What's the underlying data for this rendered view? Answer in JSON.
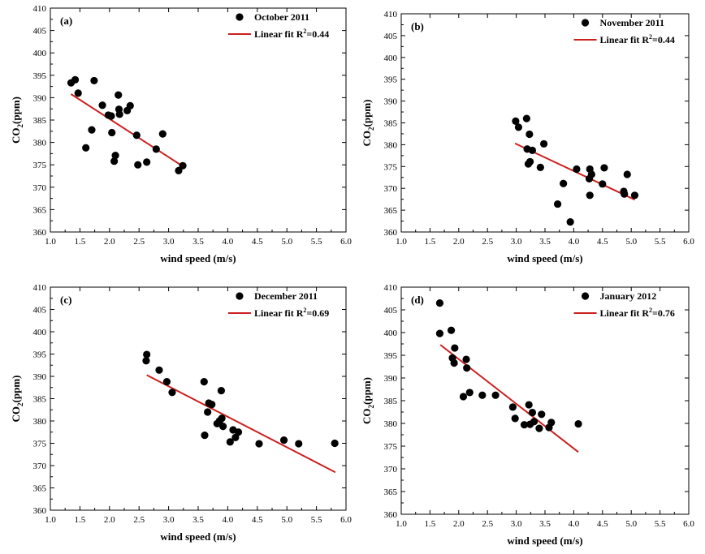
{
  "chart_data": [
    {
      "type": "scatter",
      "panel_label": "(a)",
      "xlabel": "wind speed (m/s)",
      "ylabel_main": "CO",
      "ylabel_sub": "2",
      "ylabel_rest": "(ppm)",
      "xlim": [
        1.0,
        6.0
      ],
      "ylim": [
        360,
        410
      ],
      "xticks": [
        "1.0",
        "1.5",
        "2.0",
        "2.5",
        "3.0",
        "3.5",
        "4.0",
        "4.5",
        "5.0",
        "5.5",
        "6.0"
      ],
      "yticks": [
        "360",
        "365",
        "370",
        "375",
        "380",
        "385",
        "390",
        "395",
        "400",
        "405",
        "410"
      ],
      "legend": {
        "position": "top-right",
        "points_label": "October 2011",
        "fit_label": "Linear fit R",
        "fit_sup": "2",
        "fit_value": "=0.44"
      },
      "points": [
        [
          1.35,
          393.3
        ],
        [
          1.42,
          394.0
        ],
        [
          1.47,
          391.0
        ],
        [
          1.6,
          378.8
        ],
        [
          1.7,
          382.8
        ],
        [
          1.74,
          393.8
        ],
        [
          1.88,
          388.3
        ],
        [
          1.98,
          386.1
        ],
        [
          2.03,
          385.9
        ],
        [
          2.04,
          382.2
        ],
        [
          2.08,
          375.8
        ],
        [
          2.1,
          377.1
        ],
        [
          2.15,
          390.6
        ],
        [
          2.16,
          387.4
        ],
        [
          2.17,
          386.3
        ],
        [
          2.3,
          387.1
        ],
        [
          2.35,
          388.2
        ],
        [
          2.46,
          381.6
        ],
        [
          2.48,
          375.0
        ],
        [
          2.63,
          375.6
        ],
        [
          2.79,
          378.5
        ],
        [
          2.9,
          381.9
        ],
        [
          3.17,
          373.7
        ],
        [
          3.24,
          374.8
        ]
      ],
      "fit": {
        "x": [
          1.35,
          3.25
        ],
        "y": [
          390.8,
          374.6
        ]
      }
    },
    {
      "type": "scatter",
      "panel_label": "(b)",
      "xlabel": "wind speed (m/s)",
      "ylabel_main": "CO",
      "ylabel_sub": "2",
      "ylabel_rest": "(ppm)",
      "xlim": [
        1.0,
        6.0
      ],
      "ylim": [
        360,
        410
      ],
      "xticks": [
        "1.0",
        "1.5",
        "2.0",
        "2.5",
        "3.0",
        "3.5",
        "4.0",
        "4.5",
        "5.0",
        "5.5",
        "6.0"
      ],
      "yticks": [
        "360",
        "365",
        "370",
        "375",
        "380",
        "385",
        "390",
        "395",
        "400",
        "405",
        "410"
      ],
      "legend": {
        "position": "top-right",
        "points_label": "November 2011",
        "fit_label": "Linear fit R",
        "fit_sup": "2",
        "fit_value": "=0.44"
      },
      "points": [
        [
          2.99,
          385.4
        ],
        [
          3.04,
          384.0
        ],
        [
          3.18,
          386.0
        ],
        [
          3.19,
          379.0
        ],
        [
          3.21,
          375.6
        ],
        [
          3.23,
          382.4
        ],
        [
          3.24,
          376.1
        ],
        [
          3.28,
          378.7
        ],
        [
          3.42,
          374.8
        ],
        [
          3.48,
          380.2
        ],
        [
          3.72,
          366.4
        ],
        [
          3.82,
          371.1
        ],
        [
          3.94,
          362.3
        ],
        [
          4.05,
          374.4
        ],
        [
          4.27,
          372.2
        ],
        [
          4.28,
          374.4
        ],
        [
          4.28,
          368.4
        ],
        [
          4.31,
          373.2
        ],
        [
          4.5,
          371.0
        ],
        [
          4.53,
          374.7
        ],
        [
          4.87,
          369.3
        ],
        [
          4.88,
          368.7
        ],
        [
          4.93,
          373.2
        ],
        [
          5.06,
          368.4
        ]
      ],
      "fit": {
        "x": [
          2.98,
          5.06
        ],
        "y": [
          380.3,
          367.4
        ]
      }
    },
    {
      "type": "scatter",
      "panel_label": "(c)",
      "xlabel": "wind speed (m/s)",
      "ylabel_main": "CO",
      "ylabel_sub": "2",
      "ylabel_rest": "(ppm)",
      "xlim": [
        1.0,
        6.0
      ],
      "ylim": [
        360,
        410
      ],
      "xticks": [
        "1.0",
        "1.5",
        "2.0",
        "2.5",
        "3.0",
        "3.5",
        "4.0",
        "4.5",
        "5.0",
        "5.5",
        "6.0"
      ],
      "yticks": [
        "360",
        "365",
        "370",
        "375",
        "380",
        "385",
        "390",
        "395",
        "400",
        "405",
        "410"
      ],
      "legend": {
        "position": "top-right",
        "points_label": "December 2011",
        "fit_label": "Linear fit R",
        "fit_sup": "2",
        "fit_value": "=0.69"
      },
      "points": [
        [
          2.62,
          393.5
        ],
        [
          2.63,
          394.9
        ],
        [
          2.84,
          391.4
        ],
        [
          2.97,
          388.8
        ],
        [
          3.06,
          386.4
        ],
        [
          3.6,
          388.8
        ],
        [
          3.61,
          376.8
        ],
        [
          3.66,
          382.0
        ],
        [
          3.68,
          384.0
        ],
        [
          3.73,
          383.7
        ],
        [
          3.82,
          379.4
        ],
        [
          3.86,
          380.0
        ],
        [
          3.89,
          386.8
        ],
        [
          3.9,
          380.6
        ],
        [
          3.92,
          378.8
        ],
        [
          4.04,
          375.3
        ],
        [
          4.09,
          378.0
        ],
        [
          4.13,
          376.3
        ],
        [
          4.18,
          377.5
        ],
        [
          4.53,
          374.9
        ],
        [
          4.95,
          375.7
        ],
        [
          5.2,
          374.9
        ],
        [
          5.81,
          375.0
        ]
      ],
      "fit": {
        "x": [
          2.63,
          5.82
        ],
        "y": [
          390.3,
          368.5
        ]
      }
    },
    {
      "type": "scatter",
      "panel_label": "(d)",
      "xlabel": "wind speed (m/s)",
      "ylabel_main": "CO",
      "ylabel_sub": "2",
      "ylabel_rest": "(ppm)",
      "xlim": [
        1.0,
        6.0
      ],
      "ylim": [
        360,
        410
      ],
      "xticks": [
        "1.0",
        "1.5",
        "2.0",
        "2.5",
        "3.0",
        "3.5",
        "4.0",
        "4.5",
        "5.0",
        "5.5",
        "6.0"
      ],
      "yticks": [
        "360",
        "365",
        "370",
        "375",
        "380",
        "385",
        "390",
        "395",
        "400",
        "405",
        "410"
      ],
      "legend": {
        "position": "top-right",
        "points_label": "January 2012",
        "fit_label": "Linear fit R",
        "fit_sup": "2",
        "fit_value": "=0.76"
      },
      "points": [
        [
          1.67,
          406.5
        ],
        [
          1.67,
          399.8
        ],
        [
          1.87,
          400.5
        ],
        [
          1.89,
          394.4
        ],
        [
          1.92,
          393.3
        ],
        [
          1.93,
          396.6
        ],
        [
          2.08,
          385.9
        ],
        [
          2.13,
          394.1
        ],
        [
          2.14,
          392.2
        ],
        [
          2.19,
          386.8
        ],
        [
          2.41,
          386.2
        ],
        [
          2.64,
          386.2
        ],
        [
          2.94,
          383.6
        ],
        [
          2.98,
          381.1
        ],
        [
          3.14,
          379.7
        ],
        [
          3.22,
          384.1
        ],
        [
          3.24,
          379.8
        ],
        [
          3.28,
          382.4
        ],
        [
          3.31,
          380.4
        ],
        [
          3.4,
          378.9
        ],
        [
          3.44,
          382.0
        ],
        [
          3.57,
          379.1
        ],
        [
          3.61,
          380.2
        ],
        [
          4.08,
          379.9
        ]
      ],
      "fit": {
        "x": [
          1.68,
          4.08
        ],
        "y": [
          397.3,
          373.7
        ]
      }
    }
  ]
}
